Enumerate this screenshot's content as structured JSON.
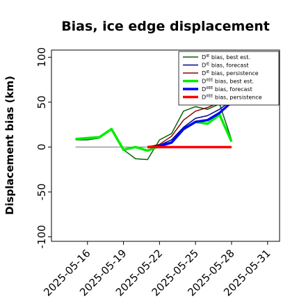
{
  "chart_data": {
    "type": "line",
    "title": "Bias, ice edge displacement",
    "xlabel": "",
    "ylabel": "Displacement bias (km)",
    "xlim": [
      "2025-05-13",
      "2025-06-01"
    ],
    "ylim": [
      -105,
      108
    ],
    "x_ticks": [
      {
        "date": "2025-05-16",
        "label": "2025-05-16",
        "color": "#000000"
      },
      {
        "date": "2025-05-19",
        "label": "2025-05-19",
        "color": "#000000"
      },
      {
        "date": "2025-05-22",
        "label": "2025-05-22",
        "color": "#228B22"
      },
      {
        "date": "2025-05-25",
        "label": "2025-05-25",
        "color": "#000000"
      },
      {
        "date": "2025-05-28",
        "label": "2025-05-28",
        "color": "#000000"
      },
      {
        "date": "2025-05-31",
        "label": "2025-05-31",
        "color": "#000000"
      }
    ],
    "y_ticks": [
      100,
      50,
      0,
      -50,
      -100
    ],
    "legend_position": "top-right",
    "series": [
      {
        "name": "D^IE bias, best est.",
        "legend_sup": "IE",
        "legend_rest": " bias, best est.",
        "color": "#006400",
        "width": 1.5,
        "x": [
          "2025-05-15",
          "2025-05-16",
          "2025-05-17",
          "2025-05-18",
          "2025-05-19",
          "2025-05-20",
          "2025-05-21",
          "2025-05-22",
          "2025-05-23",
          "2025-05-24",
          "2025-05-25",
          "2025-05-26",
          "2025-05-27",
          "2025-05-28"
        ],
        "y": [
          8,
          8,
          10,
          20,
          -3,
          -13,
          -14,
          8,
          15,
          40,
          45,
          42,
          48,
          8
        ]
      },
      {
        "name": "D^IE bias, forecast",
        "legend_sup": "IE",
        "legend_rest": " bias, forecast",
        "color": "#00008B",
        "width": 1.5,
        "x": [
          "2025-05-21",
          "2025-05-22",
          "2025-05-23",
          "2025-05-24",
          "2025-05-25",
          "2025-05-26",
          "2025-05-27",
          "2025-05-28"
        ],
        "y": [
          0,
          2,
          8,
          22,
          32,
          35,
          42,
          52
        ]
      },
      {
        "name": "D^IE bias, persistence",
        "legend_sup": "IE",
        "legend_rest": " bias, persistence",
        "color": "#8B0000",
        "width": 1.5,
        "x": [
          "2025-05-21",
          "2025-05-22",
          "2025-05-23",
          "2025-05-24",
          "2025-05-25",
          "2025-05-26",
          "2025-05-27",
          "2025-05-28"
        ],
        "y": [
          0,
          3,
          12,
          30,
          40,
          44,
          50,
          55
        ]
      },
      {
        "name": "D^IIEE bias, best est.",
        "legend_sup": "IIEE",
        "legend_rest": " bias, best est.",
        "color": "#00EE00",
        "width": 3.5,
        "x": [
          "2025-05-15",
          "2025-05-16",
          "2025-05-17",
          "2025-05-18",
          "2025-05-19",
          "2025-05-20",
          "2025-05-21",
          "2025-05-22",
          "2025-05-23",
          "2025-05-24",
          "2025-05-25",
          "2025-05-26",
          "2025-05-27",
          "2025-05-28"
        ],
        "y": [
          9,
          10,
          11,
          20,
          -3,
          0,
          -4,
          1,
          5,
          20,
          28,
          26,
          36,
          6
        ]
      },
      {
        "name": "D^IIEE bias, forecast",
        "legend_sup": "IIEE",
        "legend_rest": " bias, forecast",
        "color": "#0000FF",
        "width": 3.5,
        "x": [
          "2025-05-21",
          "2025-05-22",
          "2025-05-23",
          "2025-05-24",
          "2025-05-25",
          "2025-05-26",
          "2025-05-27",
          "2025-05-28"
        ],
        "y": [
          0,
          1,
          5,
          20,
          28,
          30,
          38,
          50
        ]
      },
      {
        "name": "D^IIEE bias, persistence",
        "legend_sup": "IIEE",
        "legend_rest": " bias, persistence",
        "color": "#FF0000",
        "width": 3.5,
        "x": [
          "2025-05-21",
          "2025-05-22",
          "2025-05-23",
          "2025-05-24",
          "2025-05-25",
          "2025-05-26",
          "2025-05-27",
          "2025-05-28"
        ],
        "y": [
          0,
          0,
          0,
          0,
          0,
          0,
          0,
          0
        ]
      }
    ],
    "reference_line": {
      "color": "#808080",
      "from": "2025-05-15",
      "to": "2025-05-21",
      "y": 0
    }
  }
}
